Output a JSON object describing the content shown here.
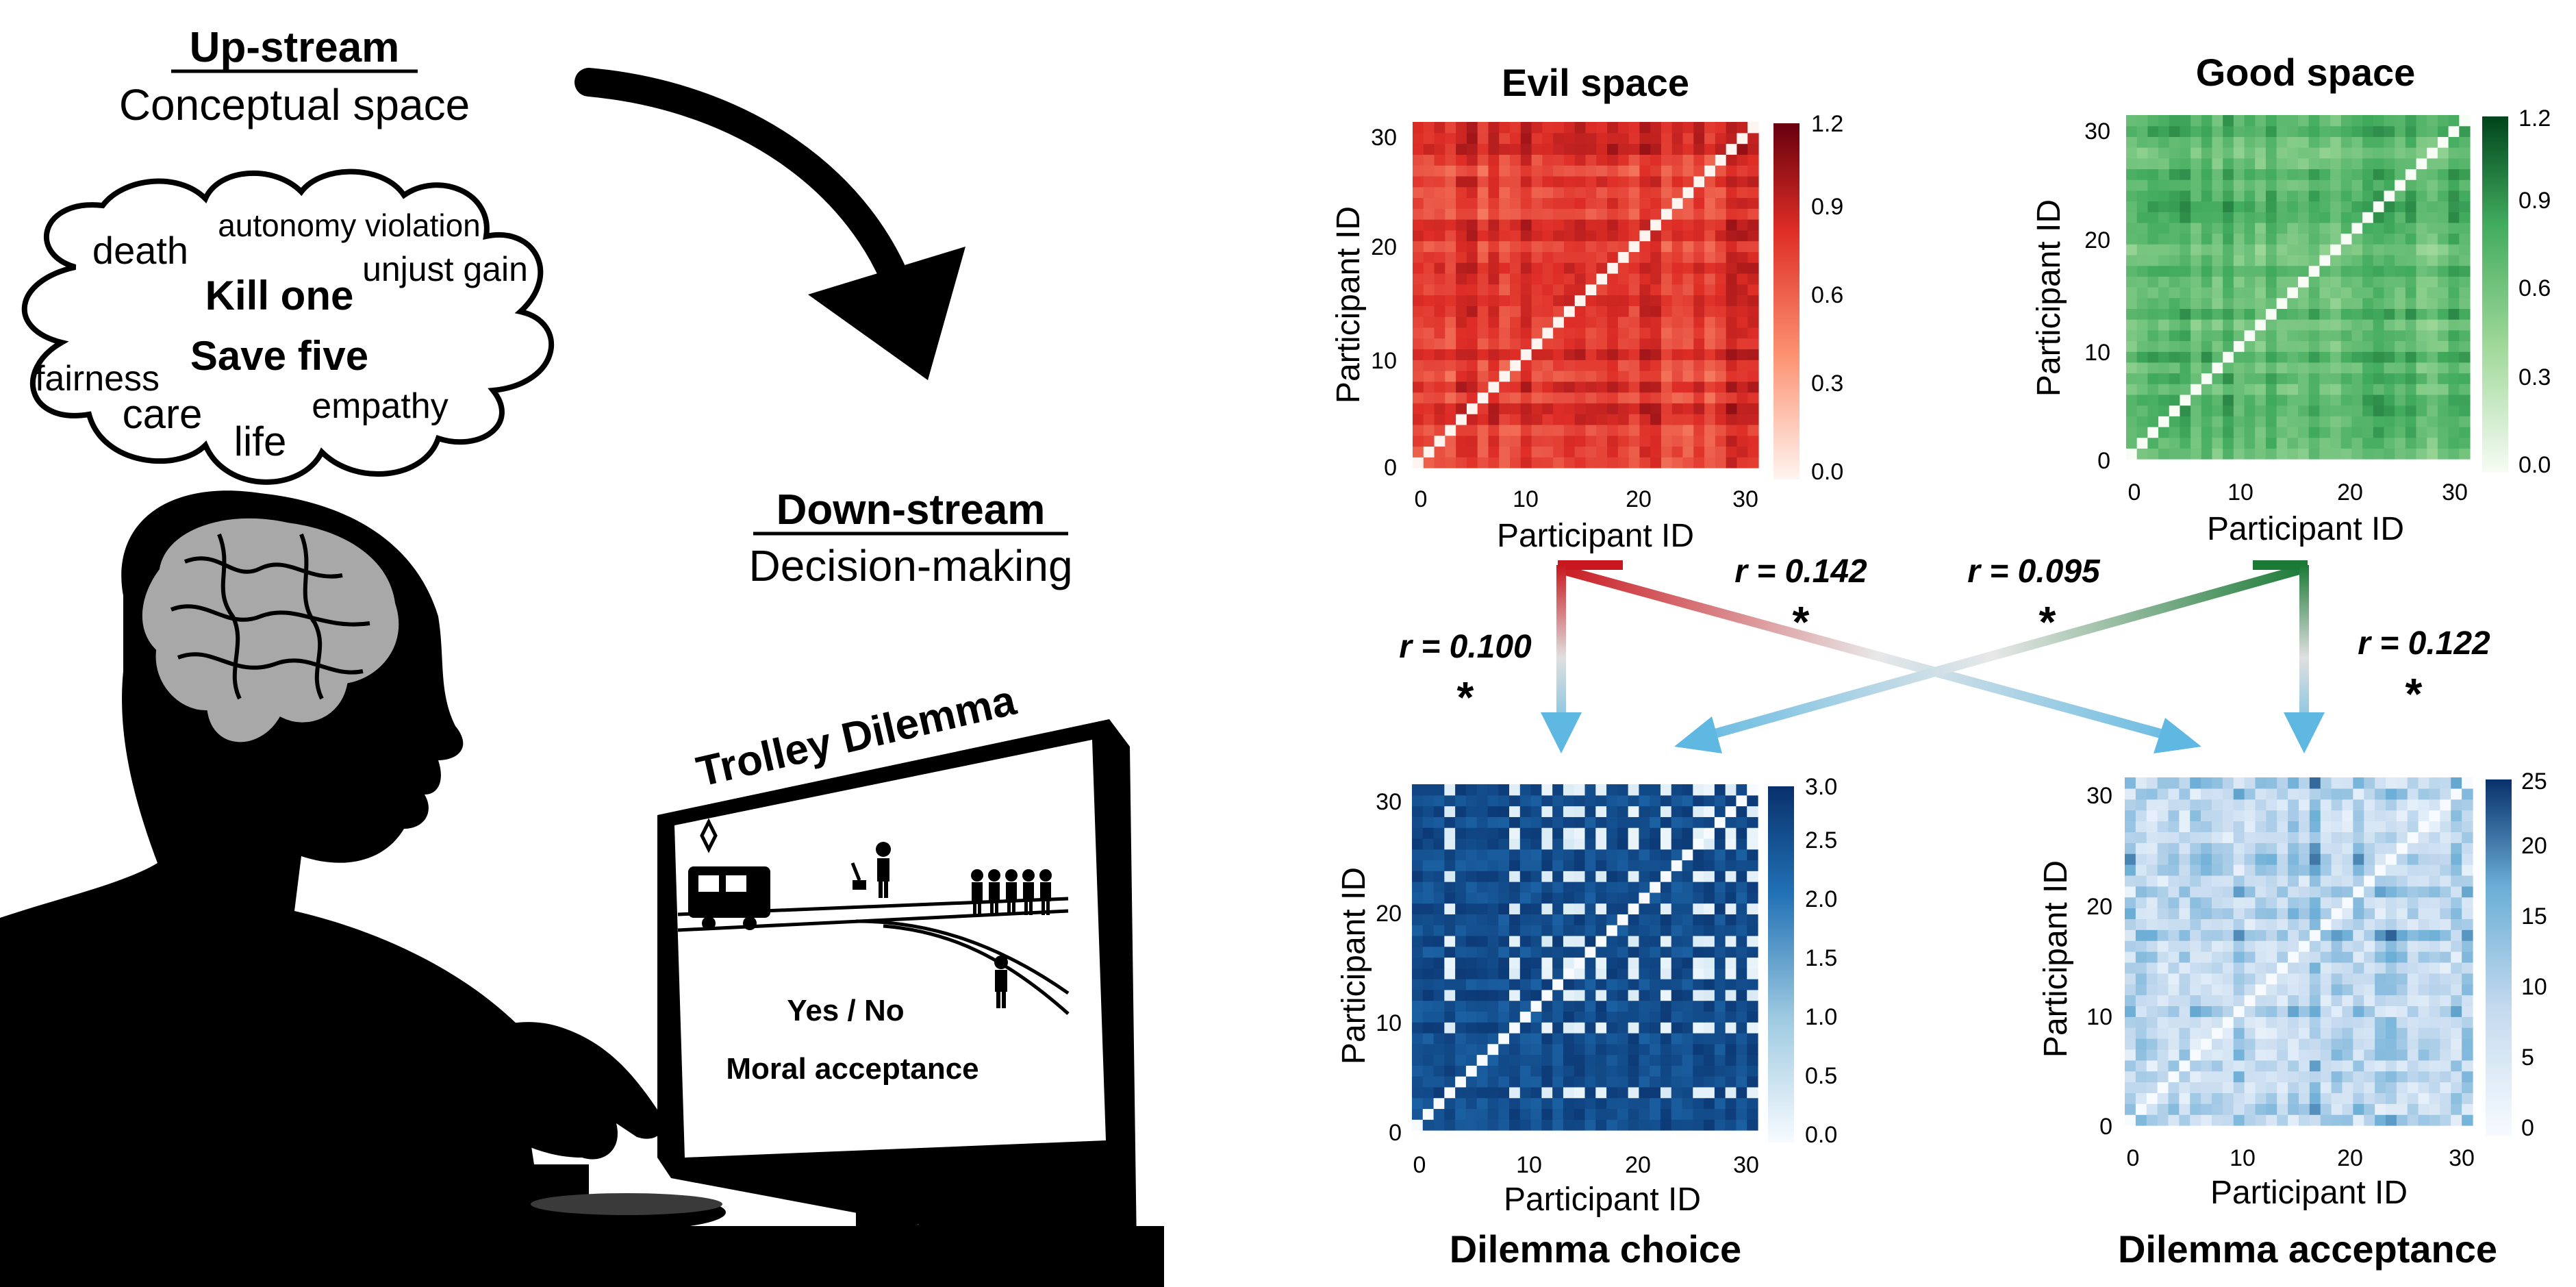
{
  "left_panel": {
    "upstream": {
      "title": "Up-stream",
      "subtitle": "Conceptual space"
    },
    "cloud_words": [
      {
        "text": "death",
        "bold": false
      },
      {
        "text": "autonomy violation",
        "bold": false
      },
      {
        "text": "unjust gain",
        "bold": false
      },
      {
        "text": "Kill one",
        "bold": true
      },
      {
        "text": "Save five",
        "bold": true
      },
      {
        "text": "fairness",
        "bold": false
      },
      {
        "text": "care",
        "bold": false
      },
      {
        "text": "life",
        "bold": false
      },
      {
        "text": "empathy",
        "bold": false
      }
    ],
    "downstream": {
      "title": "Down-stream",
      "subtitle": "Decision-making"
    },
    "trolley_title": "Trolley Dilemma",
    "screen_text": {
      "choice": "Yes / No",
      "acceptance": "Moral acceptance"
    }
  },
  "heatmaps": [
    {
      "id": "evil",
      "title": "Evil space",
      "xlabel": "Participant ID",
      "ylabel": "Participant ID",
      "ticks": [
        "0",
        "10",
        "20",
        "30"
      ],
      "colorbar_ticks": [
        "0.0",
        "0.3",
        "0.6",
        "0.9",
        "1.2"
      ],
      "colormap": [
        "#fff5f0",
        "#fc9272",
        "#de2d26",
        "#67000d"
      ],
      "pattern": "evil"
    },
    {
      "id": "good",
      "title": "Good space",
      "xlabel": "Participant ID",
      "ylabel": "Participant ID",
      "ticks": [
        "0",
        "10",
        "20",
        "30"
      ],
      "colorbar_ticks": [
        "0.0",
        "0.3",
        "0.6",
        "0.9",
        "1.2"
      ],
      "colormap": [
        "#f7fcf5",
        "#a1d99b",
        "#41ab5d",
        "#00441b"
      ],
      "pattern": "good"
    },
    {
      "id": "choice",
      "title": "Dilemma choice",
      "xlabel": "Participant ID",
      "ylabel": "Participant ID",
      "ticks": [
        "0",
        "10",
        "20",
        "30"
      ],
      "colorbar_ticks": [
        "0.0",
        "0.5",
        "1.0",
        "1.5",
        "2.0",
        "2.5",
        "3.0"
      ],
      "colormap": [
        "#f7fbff",
        "#9ecae1",
        "#2171b5",
        "#08306b"
      ],
      "pattern": "choice"
    },
    {
      "id": "acceptance",
      "title": "Dilemma acceptance",
      "xlabel": "Participant ID",
      "ylabel": "Participant ID",
      "ticks": [
        "0",
        "10",
        "20",
        "30"
      ],
      "colorbar_ticks": [
        "0",
        "5",
        "10",
        "15",
        "20",
        "25"
      ],
      "colormap": [
        "#f7fbff",
        "#c6dbef",
        "#6baed6",
        "#08306b"
      ],
      "pattern": "acceptance"
    }
  ],
  "correlations": [
    {
      "from": "Evil space",
      "to": "Dilemma choice",
      "label": "r = 0.100",
      "sig": "*"
    },
    {
      "from": "Evil space",
      "to": "Dilemma acceptance",
      "label": "r = 0.142",
      "sig": "*"
    },
    {
      "from": "Good space",
      "to": "Dilemma choice",
      "label": "r = 0.095",
      "sig": "*"
    },
    {
      "from": "Good space",
      "to": "Dilemma acceptance",
      "label": "r = 0.122",
      "sig": "*"
    }
  ]
}
